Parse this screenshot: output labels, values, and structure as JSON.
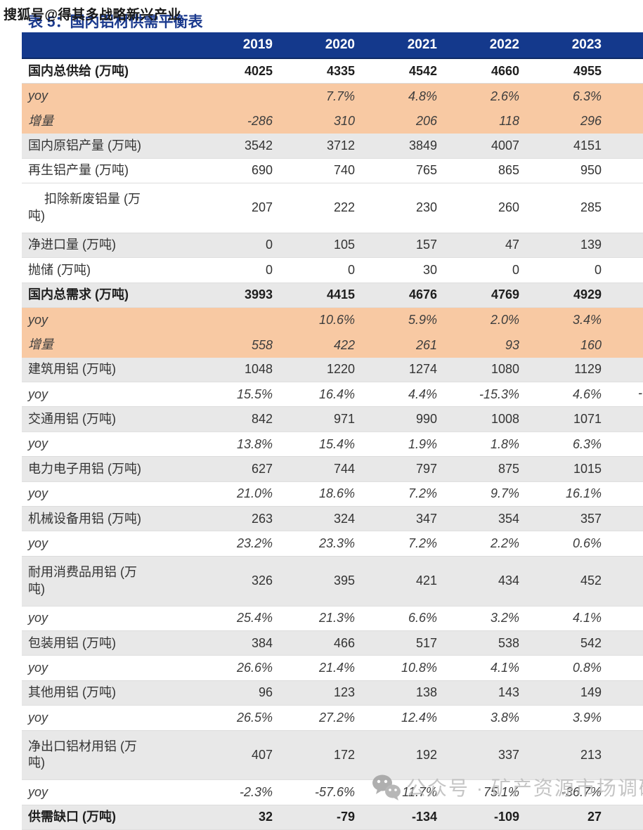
{
  "watermark_top": "搜狐号@得其多战略新兴产业",
  "title": "表 5：国内铝材供需平衡表",
  "watermark_bottom": "公众号 · 矿产资源市场调研",
  "edge_partial_value": "-",
  "colors": {
    "header_bg": "#14398C",
    "title_blue": "#1B3A8E",
    "orange_band": "#F8C9A3",
    "stripe_gray": "#E8E8E8",
    "watermark_gray": "#B9B9B9"
  },
  "table": {
    "columns": [
      "2019",
      "2020",
      "2021",
      "2022",
      "2023"
    ],
    "rows": [
      {
        "label": "国内总供给 (万吨)",
        "values": [
          "4025",
          "4335",
          "4542",
          "4660",
          "4955"
        ],
        "bg": "white",
        "bold": true
      },
      {
        "label": "yoy",
        "values": [
          "",
          "7.7%",
          "4.8%",
          "2.6%",
          "6.3%"
        ],
        "bg": "orange",
        "italic": true
      },
      {
        "label": "增量",
        "values": [
          "-286",
          "310",
          "206",
          "118",
          "296"
        ],
        "bg": "orange",
        "italic": true
      },
      {
        "label": "国内原铝产量 (万吨)",
        "values": [
          "3542",
          "3712",
          "3849",
          "4007",
          "4151"
        ],
        "bg": "gray"
      },
      {
        "label": "再生铝产量 (万吨)",
        "values": [
          "690",
          "740",
          "765",
          "865",
          "950"
        ],
        "bg": "white"
      },
      {
        "label": "扣除新废铝量 (万\n吨)",
        "values": [
          "207",
          "222",
          "230",
          "260",
          "285"
        ],
        "bg": "white",
        "tall": true,
        "indent": true
      },
      {
        "label": "净进口量 (万吨)",
        "values": [
          "0",
          "105",
          "157",
          "47",
          "139"
        ],
        "bg": "gray"
      },
      {
        "label": "抛储 (万吨)",
        "values": [
          "0",
          "0",
          "30",
          "0",
          "0"
        ],
        "bg": "white"
      },
      {
        "label": "国内总需求 (万吨)",
        "values": [
          "3993",
          "4415",
          "4676",
          "4769",
          "4929"
        ],
        "bg": "gray",
        "bold": true
      },
      {
        "label": "yoy",
        "values": [
          "",
          "10.6%",
          "5.9%",
          "2.0%",
          "3.4%"
        ],
        "bg": "orange",
        "italic": true
      },
      {
        "label": "增量",
        "values": [
          "558",
          "422",
          "261",
          "93",
          "160"
        ],
        "bg": "orange",
        "italic": true
      },
      {
        "label": "建筑用铝 (万吨)",
        "values": [
          "1048",
          "1220",
          "1274",
          "1080",
          "1129"
        ],
        "bg": "gray"
      },
      {
        "label": "yoy",
        "values": [
          "15.5%",
          "16.4%",
          "4.4%",
          "-15.3%",
          "4.6%"
        ],
        "bg": "white",
        "italic": true
      },
      {
        "label": "交通用铝 (万吨)",
        "values": [
          "842",
          "971",
          "990",
          "1008",
          "1071"
        ],
        "bg": "gray"
      },
      {
        "label": "yoy",
        "values": [
          "13.8%",
          "15.4%",
          "1.9%",
          "1.8%",
          "6.3%"
        ],
        "bg": "white",
        "italic": true
      },
      {
        "label": "电力电子用铝 (万吨)",
        "values": [
          "627",
          "744",
          "797",
          "875",
          "1015"
        ],
        "bg": "gray"
      },
      {
        "label": "yoy",
        "values": [
          "21.0%",
          "18.6%",
          "7.2%",
          "9.7%",
          "16.1%"
        ],
        "bg": "white",
        "italic": true
      },
      {
        "label": "机械设备用铝 (万吨)",
        "values": [
          "263",
          "324",
          "347",
          "354",
          "357"
        ],
        "bg": "gray"
      },
      {
        "label": "yoy",
        "values": [
          "23.2%",
          "23.3%",
          "7.2%",
          "2.2%",
          "0.6%"
        ],
        "bg": "white",
        "italic": true
      },
      {
        "label": "耐用消费品用铝 (万\n吨)",
        "values": [
          "326",
          "395",
          "421",
          "434",
          "452"
        ],
        "bg": "gray",
        "tall": true
      },
      {
        "label": "yoy",
        "values": [
          "25.4%",
          "21.3%",
          "6.6%",
          "3.2%",
          "4.1%"
        ],
        "bg": "white",
        "italic": true
      },
      {
        "label": "包装用铝 (万吨)",
        "values": [
          "384",
          "466",
          "517",
          "538",
          "542"
        ],
        "bg": "gray"
      },
      {
        "label": "yoy",
        "values": [
          "26.6%",
          "21.4%",
          "10.8%",
          "4.1%",
          "0.8%"
        ],
        "bg": "white",
        "italic": true
      },
      {
        "label": "其他用铝 (万吨)",
        "values": [
          "96",
          "123",
          "138",
          "143",
          "149"
        ],
        "bg": "gray"
      },
      {
        "label": "yoy",
        "values": [
          "26.5%",
          "27.2%",
          "12.4%",
          "3.8%",
          "3.9%"
        ],
        "bg": "white",
        "italic": true
      },
      {
        "label": "净出口铝材用铝 (万\n吨)",
        "values": [
          "407",
          "172",
          "192",
          "337",
          "213"
        ],
        "bg": "gray",
        "tall": true
      },
      {
        "label": "yoy",
        "values": [
          "-2.3%",
          "-57.6%",
          "11.7%",
          "75.1%",
          "-36.7%"
        ],
        "bg": "white",
        "italic": true
      },
      {
        "label": "供需缺口 (万吨)",
        "values": [
          "32",
          "-79",
          "-134",
          "-109",
          "27"
        ],
        "bg": "gray",
        "bold": true
      }
    ]
  }
}
